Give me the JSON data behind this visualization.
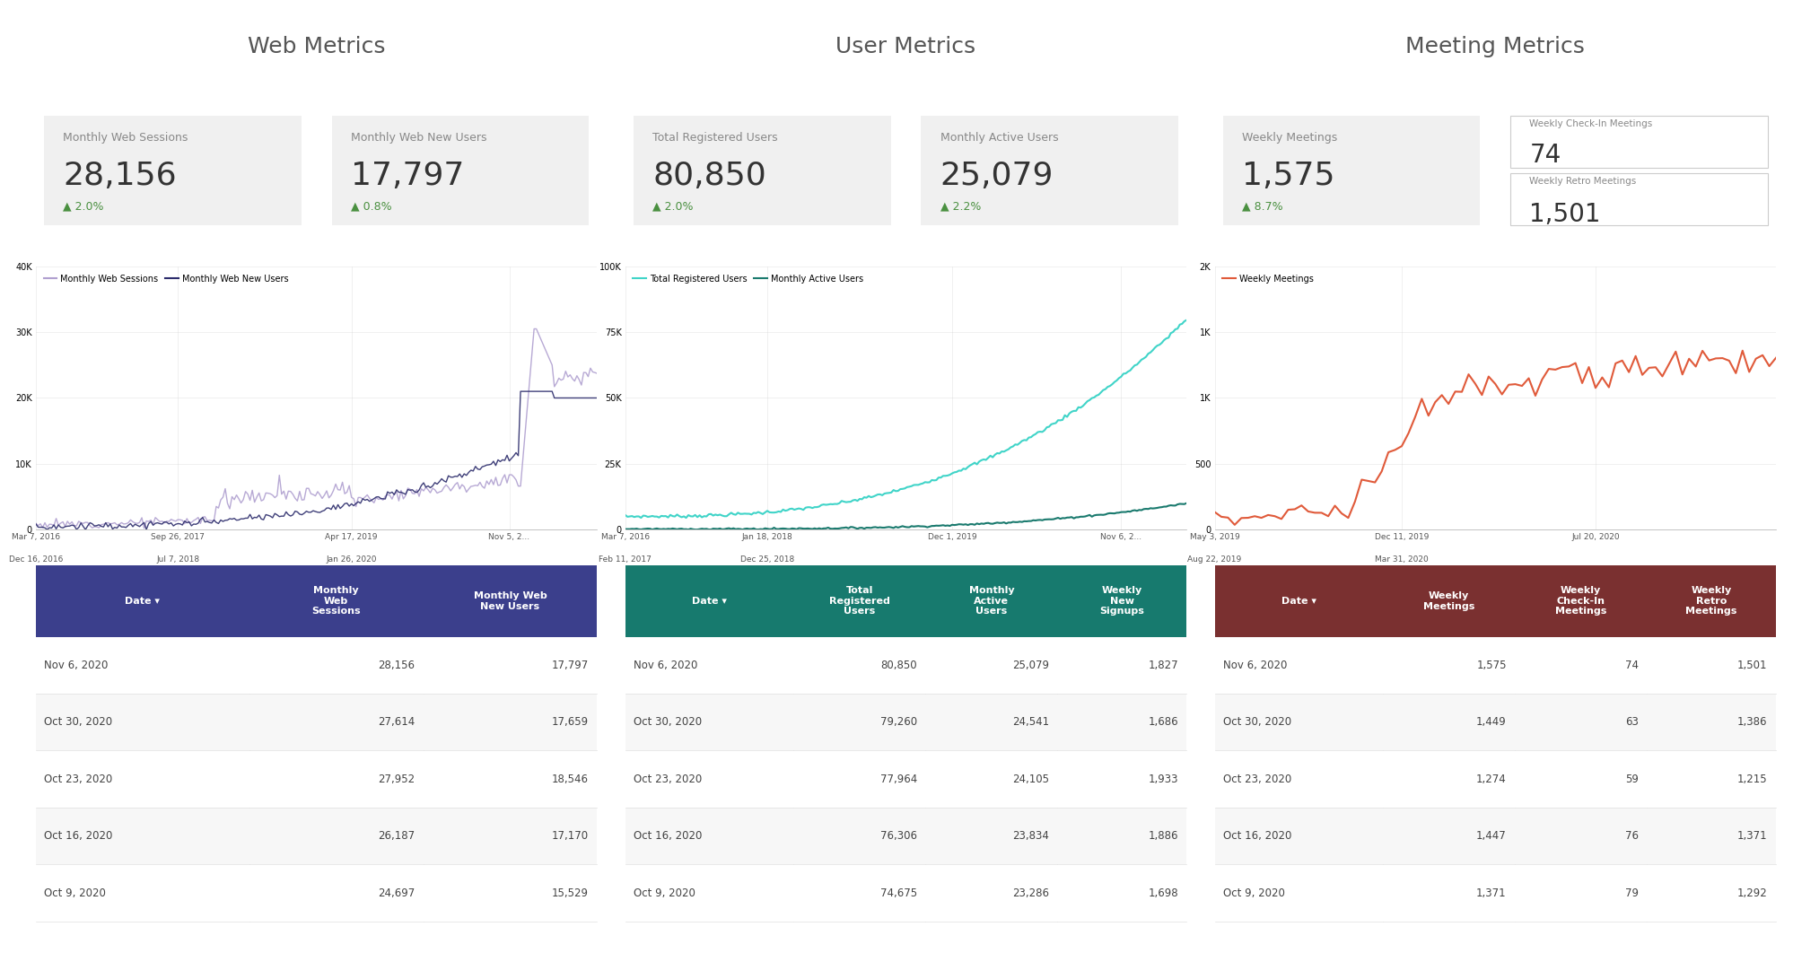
{
  "title_web": "Web Metrics",
  "title_user": "User Metrics",
  "title_meeting": "Meeting Metrics",
  "web_kpi1_label": "Monthly Web Sessions",
  "web_kpi1_value": "28,156",
  "web_kpi1_change": "▲ 2.0%",
  "web_kpi2_label": "Monthly Web New Users",
  "web_kpi2_value": "17,797",
  "web_kpi2_change": "▲ 0.8%",
  "user_kpi1_label": "Total Registered Users",
  "user_kpi1_value": "80,850",
  "user_kpi1_change": "▲ 2.0%",
  "user_kpi2_label": "Monthly Active Users",
  "user_kpi2_value": "25,079",
  "user_kpi2_change": "▲ 2.2%",
  "meet_kpi1_label": "Weekly Meetings",
  "meet_kpi1_value": "1,575",
  "meet_kpi1_change": "▲ 8.7%",
  "meet_kpi2a_label": "Weekly Check-In Meetings",
  "meet_kpi2a_value": "74",
  "meet_kpi2b_label": "Weekly Retro Meetings",
  "meet_kpi2b_value": "1,501",
  "web_legend1": "Monthly Web Sessions",
  "web_legend2": "Monthly Web New Users",
  "web_line1_color": "#b0a0d0",
  "web_line2_color": "#2b2b6b",
  "user_legend1": "Total Registered Users",
  "user_legend2": "Monthly Active Users",
  "user_line1_color": "#40d4c8",
  "user_line2_color": "#1a7a6e",
  "meet_legend1": "Weekly Meetings",
  "meet_line1_color": "#e05a3a",
  "web_table_header_bg": "#3b3f8c",
  "web_table_header_fg": "#ffffff",
  "web_table_col0": "Date ▾",
  "web_table_col1": "Monthly\nWeb\nSessions",
  "web_table_col2": "Monthly Web\nNew Users",
  "web_table_rows": [
    [
      "Nov 6, 2020",
      "28,156",
      "17,797"
    ],
    [
      "Oct 30, 2020",
      "27,614",
      "17,659"
    ],
    [
      "Oct 23, 2020",
      "27,952",
      "18,546"
    ],
    [
      "Oct 16, 2020",
      "26,187",
      "17,170"
    ],
    [
      "Oct 9, 2020",
      "24,697",
      "15,529"
    ]
  ],
  "user_table_header_bg": "#177a6e",
  "user_table_header_fg": "#ffffff",
  "user_table_col0": "Date ▾",
  "user_table_col1": "Total\nRegistered\nUsers",
  "user_table_col2": "Monthly\nActive\nUsers",
  "user_table_col3": "Weekly\nNew\nSignups",
  "user_table_rows": [
    [
      "Nov 6, 2020",
      "80,850",
      "25,079",
      "1,827"
    ],
    [
      "Oct 30, 2020",
      "79,260",
      "24,541",
      "1,686"
    ],
    [
      "Oct 23, 2020",
      "77,964",
      "24,105",
      "1,933"
    ],
    [
      "Oct 16, 2020",
      "76,306",
      "23,834",
      "1,886"
    ],
    [
      "Oct 9, 2020",
      "74,675",
      "23,286",
      "1,698"
    ]
  ],
  "meet_table_header_bg": "#7a3030",
  "meet_table_header_fg": "#ffffff",
  "meet_table_col0": "Date ▾",
  "meet_table_col1": "Weekly\nMeetings",
  "meet_table_col2": "Weekly\nCheck-In\nMeetings",
  "meet_table_col3": "Weekly\nRetro\nMeetings",
  "meet_table_rows": [
    [
      "Nov 6, 2020",
      "1,575",
      "74",
      "1,501"
    ],
    [
      "Oct 30, 2020",
      "1,449",
      "63",
      "1,386"
    ],
    [
      "Oct 23, 2020",
      "1,274",
      "59",
      "1,215"
    ],
    [
      "Oct 16, 2020",
      "1,447",
      "76",
      "1,371"
    ],
    [
      "Oct 9, 2020",
      "1,371",
      "79",
      "1,292"
    ]
  ],
  "bg_color": "#ffffff",
  "kpi_bg_color": "#f0f0f0",
  "kpi_bg_white": "#ffffff",
  "text_color": "#888888",
  "change_color": "#4a9040",
  "title_fontsize": 18,
  "kpi_label_fontsize": 9,
  "kpi_value_fontsize": 26,
  "kpi_change_fontsize": 9,
  "table_fontsize": 8.5
}
